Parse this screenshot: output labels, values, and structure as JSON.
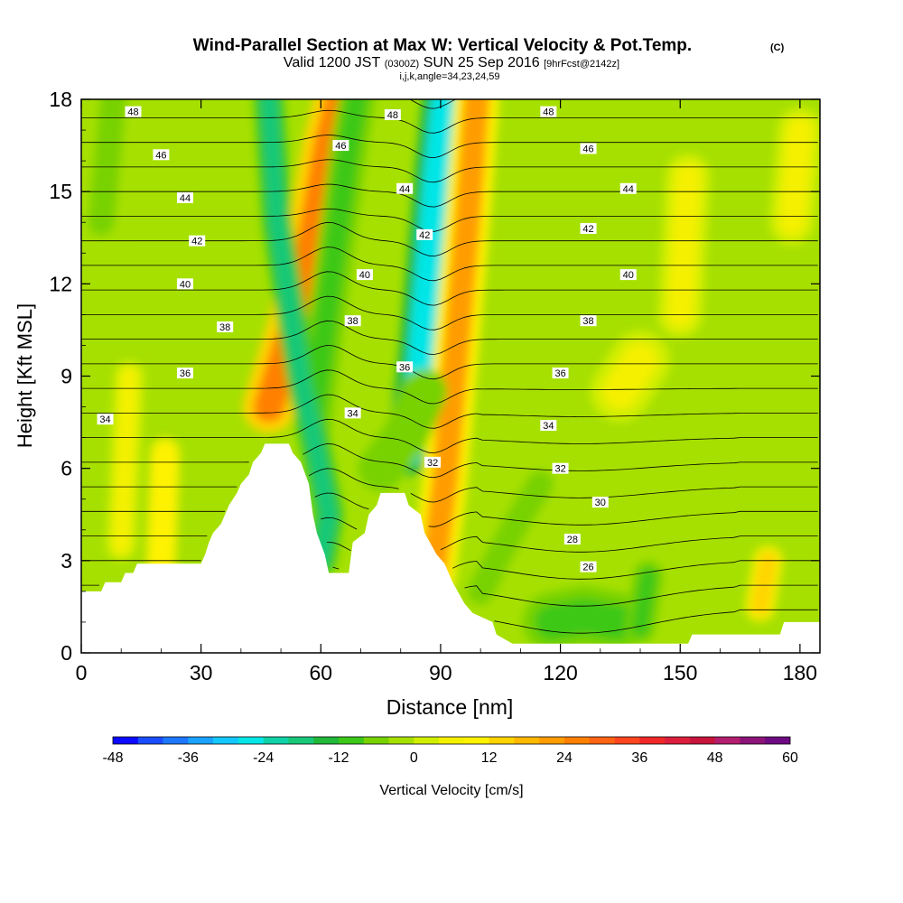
{
  "chart_data": {
    "type": "heatmap",
    "title": "Wind-Parallel Section at Max W: Vertical Velocity & Pot.Temp.",
    "title_mark": "(C)",
    "subtitle_valid": "Valid 1200 JST",
    "subtitle_utc": "(0300Z)",
    "subtitle_date": "SUN 25 Sep 2016",
    "subtitle_fcst": "[9hrFcst@2142z]",
    "subtitle_ijk": "i,j,k,angle=34,23,24,59",
    "xlabel": "Distance [nm]",
    "ylabel": "Height [Kft MSL]",
    "xlim": [
      0,
      185
    ],
    "ylim": [
      0,
      18
    ],
    "x_ticks": [
      0,
      30,
      60,
      90,
      120,
      150,
      180
    ],
    "y_ticks": [
      0,
      3,
      6,
      9,
      12,
      15,
      18
    ],
    "colorbar": {
      "label": "Vertical Velocity [cm/s]",
      "min": -48,
      "max": 60,
      "step": 4,
      "ticks": [
        -48,
        -36,
        -24,
        -12,
        0,
        12,
        24,
        36,
        48,
        60
      ],
      "colors": [
        "#0a0aff",
        "#1a4cff",
        "#1e78ff",
        "#1aa2ff",
        "#12c8ff",
        "#06e6e6",
        "#10d2a8",
        "#18c878",
        "#22b83a",
        "#3cc818",
        "#78d200",
        "#a6e000",
        "#d2ee00",
        "#f4f000",
        "#fff200",
        "#ffd400",
        "#ffb800",
        "#ff9c00",
        "#ff8000",
        "#ff6414",
        "#ff461e",
        "#f02828",
        "#dc1e3c",
        "#c8143c",
        "#b41e6e",
        "#8c1478",
        "#6e0a82"
      ]
    },
    "theta_contour_labels": [
      {
        "x": 13,
        "z": 17.6,
        "value": "48"
      },
      {
        "x": 78,
        "z": 17.5,
        "value": "48"
      },
      {
        "x": 117,
        "z": 17.6,
        "value": "48"
      },
      {
        "x": 20,
        "z": 16.2,
        "value": "46"
      },
      {
        "x": 65,
        "z": 16.5,
        "value": "46"
      },
      {
        "x": 127,
        "z": 16.4,
        "value": "46"
      },
      {
        "x": 26,
        "z": 14.8,
        "value": "44"
      },
      {
        "x": 81,
        "z": 15.1,
        "value": "44"
      },
      {
        "x": 137,
        "z": 15.1,
        "value": "44"
      },
      {
        "x": 29,
        "z": 13.4,
        "value": "42"
      },
      {
        "x": 86,
        "z": 13.6,
        "value": "42"
      },
      {
        "x": 127,
        "z": 13.8,
        "value": "42"
      },
      {
        "x": 26,
        "z": 12.0,
        "value": "40"
      },
      {
        "x": 71,
        "z": 12.3,
        "value": "40"
      },
      {
        "x": 137,
        "z": 12.3,
        "value": "40"
      },
      {
        "x": 36,
        "z": 10.6,
        "value": "38"
      },
      {
        "x": 68,
        "z": 10.8,
        "value": "38"
      },
      {
        "x": 127,
        "z": 10.8,
        "value": "38"
      },
      {
        "x": 26,
        "z": 9.1,
        "value": "36"
      },
      {
        "x": 81,
        "z": 9.3,
        "value": "36"
      },
      {
        "x": 120,
        "z": 9.1,
        "value": "36"
      },
      {
        "x": 6,
        "z": 7.6,
        "value": "34"
      },
      {
        "x": 68,
        "z": 7.8,
        "value": "34"
      },
      {
        "x": 117,
        "z": 7.4,
        "value": "34"
      },
      {
        "x": 88,
        "z": 6.2,
        "value": "32"
      },
      {
        "x": 120,
        "z": 6.0,
        "value": "32"
      },
      {
        "x": 130,
        "z": 4.9,
        "value": "30"
      },
      {
        "x": 123,
        "z": 3.7,
        "value": "28"
      },
      {
        "x": 127,
        "z": 2.8,
        "value": "26"
      }
    ],
    "terrain": [
      [
        0,
        2
      ],
      [
        5,
        2
      ],
      [
        6,
        2.3
      ],
      [
        10,
        2.3
      ],
      [
        11,
        2.6
      ],
      [
        13,
        2.6
      ],
      [
        14,
        2.9
      ],
      [
        30,
        2.9
      ],
      [
        31,
        3.2
      ],
      [
        32,
        3.6
      ],
      [
        33,
        3.9
      ],
      [
        35,
        4.2
      ],
      [
        36,
        4.5
      ],
      [
        37,
        4.8
      ],
      [
        39,
        5.2
      ],
      [
        40,
        5.5
      ],
      [
        42,
        5.8
      ],
      [
        43,
        6.2
      ],
      [
        45,
        6.5
      ],
      [
        46,
        6.8
      ],
      [
        52,
        6.8
      ],
      [
        53,
        6.5
      ],
      [
        55,
        6.2
      ],
      [
        57,
        5.5
      ],
      [
        58,
        4.5
      ],
      [
        59,
        3.9
      ],
      [
        61,
        3.2
      ],
      [
        62,
        2.6
      ],
      [
        67,
        2.6
      ],
      [
        68,
        3.6
      ],
      [
        71,
        3.9
      ],
      [
        72,
        4.5
      ],
      [
        74,
        4.8
      ],
      [
        75,
        5.2
      ],
      [
        81,
        5.2
      ],
      [
        82,
        4.8
      ],
      [
        85,
        4.5
      ],
      [
        86,
        3.9
      ],
      [
        89,
        3.2
      ],
      [
        91,
        2.9
      ],
      [
        93,
        2.3
      ],
      [
        96,
        1.6
      ],
      [
        98,
        1.3
      ],
      [
        103,
        1.0
      ],
      [
        104,
        0.6
      ],
      [
        108,
        0.3
      ],
      [
        152,
        0.3
      ],
      [
        153,
        0.6
      ],
      [
        175,
        0.6
      ],
      [
        176,
        1.0
      ],
      [
        185,
        1.0
      ]
    ],
    "w_features": [
      {
        "path": [
          [
            47,
            8.0
          ],
          [
            53,
            10.5
          ],
          [
            58,
            13.5
          ],
          [
            62,
            16.5
          ],
          [
            65,
            18
          ]
        ],
        "w": 24,
        "width": 3.5
      },
      {
        "path": [
          [
            58,
            7.5
          ],
          [
            61,
            10.5
          ],
          [
            64,
            13.5
          ],
          [
            67,
            16.5
          ],
          [
            69,
            18
          ]
        ],
        "w": -10,
        "width": 2.5
      },
      {
        "path": [
          [
            60,
            3.0
          ],
          [
            62,
            4.5
          ],
          [
            59,
            6.5
          ],
          [
            55,
            9.0
          ],
          [
            52,
            11.5
          ],
          [
            49,
            14.0
          ],
          [
            47,
            18
          ]
        ],
        "w": -18,
        "width": 2.0
      },
      {
        "path": [
          [
            82,
            6.5
          ],
          [
            85,
            9.5
          ],
          [
            87,
            12.5
          ],
          [
            89,
            15.5
          ],
          [
            91,
            18
          ]
        ],
        "w": -26,
        "width": 3.0
      },
      {
        "path": [
          [
            88,
            2.5
          ],
          [
            91,
            5.5
          ],
          [
            93,
            8.5
          ],
          [
            95,
            11.5
          ],
          [
            97,
            14.5
          ],
          [
            99,
            18
          ]
        ],
        "w": 20,
        "width": 3.0
      },
      {
        "path": [
          [
            75,
            6.0
          ],
          [
            81,
            7.0
          ],
          [
            86,
            8.5
          ]
        ],
        "w": -8,
        "width": 3.0
      },
      {
        "path": [
          [
            100,
            2.0
          ],
          [
            108,
            4.0
          ],
          [
            115,
            5.5
          ]
        ],
        "w": -6,
        "width": 3.0
      },
      {
        "path": [
          [
            118,
            1.0
          ],
          [
            126,
            1.2
          ],
          [
            134,
            1.0
          ]
        ],
        "w": -12,
        "width": 4.0
      },
      {
        "path": [
          [
            140,
            0.8
          ],
          [
            142,
            2.5
          ]
        ],
        "w": -10,
        "width": 2.0
      },
      {
        "path": [
          [
            170,
            1.5
          ],
          [
            172,
            3.0
          ]
        ],
        "w": 12,
        "width": 2.0
      },
      {
        "path": [
          [
            20,
            3.0
          ],
          [
            21,
            6.5
          ]
        ],
        "w": 8,
        "width": 2.0
      },
      {
        "path": [
          [
            10,
            3.5
          ],
          [
            12,
            9.0
          ]
        ],
        "w": 6,
        "width": 2.0
      },
      {
        "path": [
          [
            5,
            14.0
          ],
          [
            8,
            18.0
          ]
        ],
        "w": -6,
        "width": 3.0
      },
      {
        "path": [
          [
            178,
            14.0
          ],
          [
            180,
            17.0
          ]
        ],
        "w": 6,
        "width": 3.0
      },
      {
        "path": [
          [
            150,
            11.0
          ],
          [
            152,
            15.5
          ]
        ],
        "w": 4,
        "width": 3.0
      },
      {
        "path": [
          [
            135,
            8.5
          ],
          [
            140,
            9.5
          ]
        ],
        "w": 4,
        "width": 4.0
      }
    ]
  }
}
